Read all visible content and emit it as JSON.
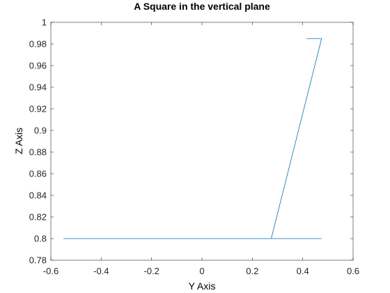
{
  "chart_data": {
    "type": "line",
    "title": "A Square in the vertical plane",
    "xlabel": "Y Axis",
    "ylabel": "Z Axis",
    "xlim": [
      -0.6,
      0.6
    ],
    "ylim": [
      0.78,
      1.0
    ],
    "xticks": [
      "-0.6",
      "-0.4",
      "-0.2",
      "0",
      "0.2",
      "0.4",
      "0.6"
    ],
    "yticks": [
      "0.78",
      "0.8",
      "0.82",
      "0.84",
      "0.86",
      "0.88",
      "0.9",
      "0.92",
      "0.94",
      "0.96",
      "0.98",
      "1"
    ],
    "grid": false,
    "series": [
      {
        "color": "#0072BD",
        "x": [
          0.415,
          0.475,
          0.275,
          -0.55,
          0.475
        ],
        "y": [
          0.985,
          0.985,
          0.8,
          0.8,
          0.8
        ]
      }
    ]
  }
}
